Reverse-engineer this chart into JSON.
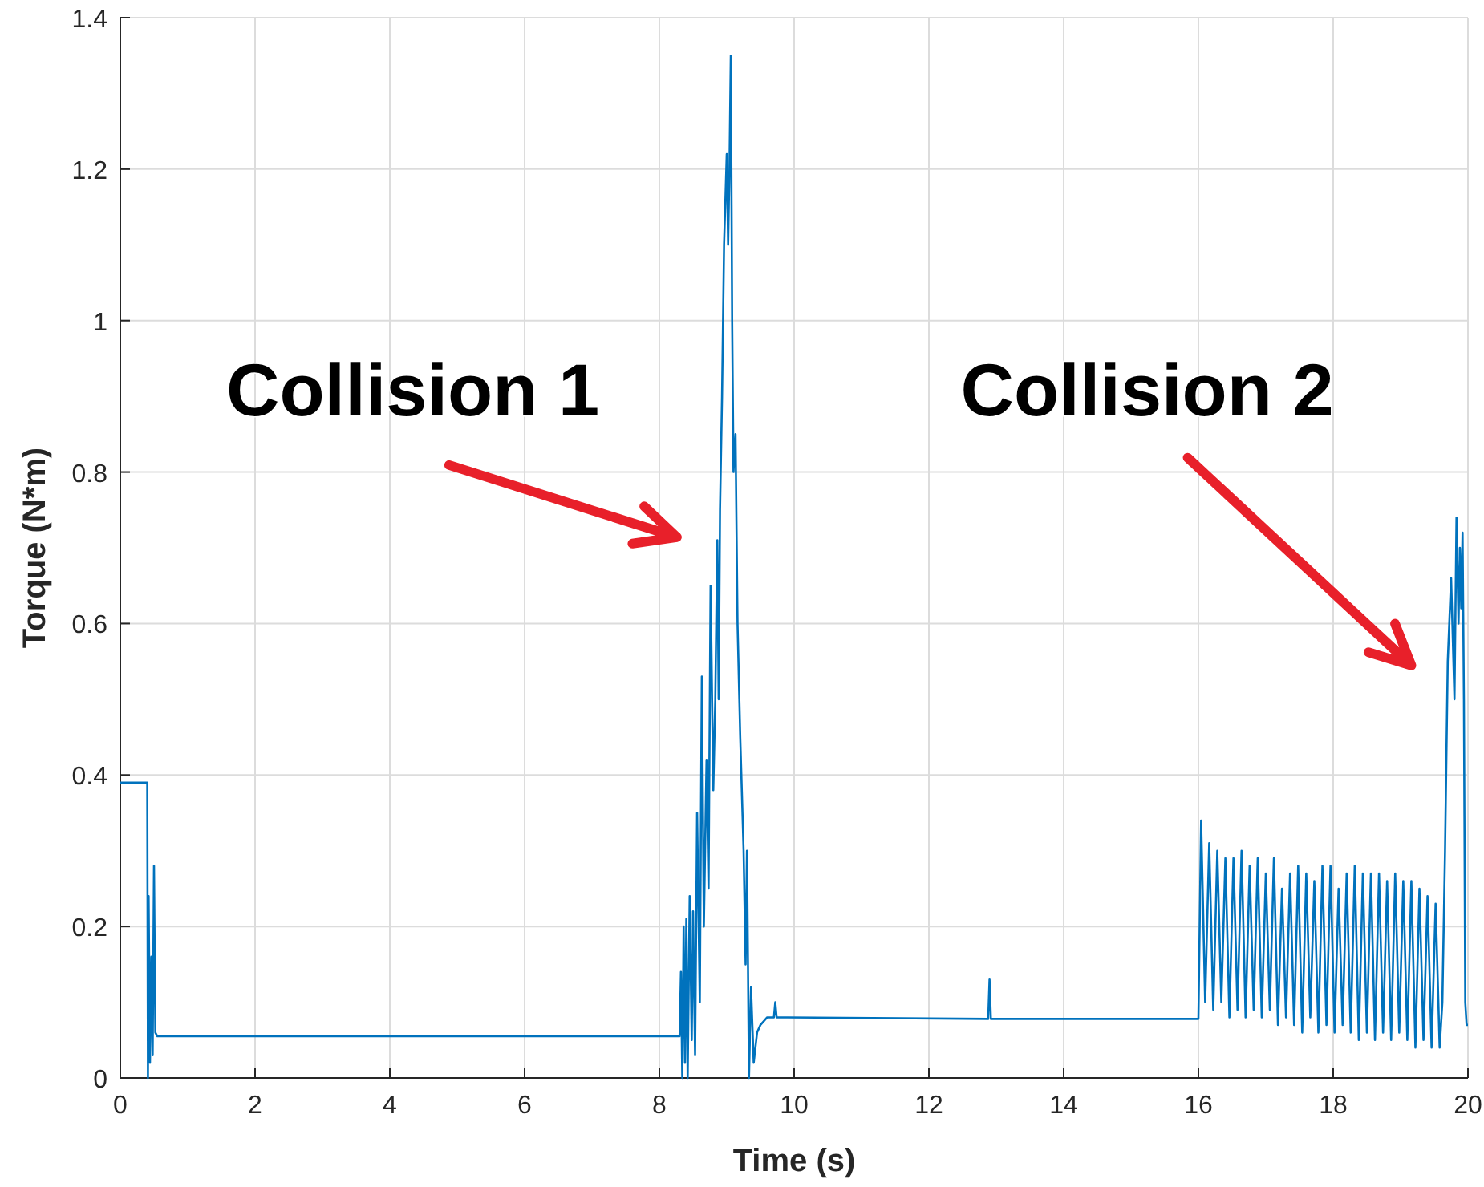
{
  "chart_data": {
    "type": "line",
    "xlabel": "Time (s)",
    "ylabel": "Torque (N*m)",
    "xlim": [
      0,
      20
    ],
    "ylim": [
      0,
      1.4
    ],
    "xticks": [
      0,
      2,
      4,
      6,
      8,
      10,
      12,
      14,
      16,
      18,
      20
    ],
    "yticks": [
      0,
      0.2,
      0.4,
      0.6,
      0.8,
      1,
      1.2,
      1.4
    ],
    "grid": true,
    "annotations": [
      "Collision 1",
      "Collision 2"
    ],
    "series": [
      {
        "color": "#0072bd",
        "x": [
          0,
          0.4,
          0.41,
          0.42,
          0.44,
          0.46,
          0.48,
          0.5,
          0.52,
          0.55,
          0.6,
          8.3,
          8.32,
          8.34,
          8.36,
          8.38,
          8.4,
          8.42,
          8.45,
          8.48,
          8.5,
          8.53,
          8.56,
          8.6,
          8.63,
          8.66,
          8.7,
          8.73,
          8.76,
          8.8,
          8.83,
          8.86,
          8.88,
          8.9,
          8.93,
          8.96,
          9.0,
          9.02,
          9.04,
          9.06,
          9.08,
          9.1,
          9.13,
          9.16,
          9.2,
          9.25,
          9.28,
          9.3,
          9.33,
          9.36,
          9.4,
          9.45,
          9.5,
          9.6,
          9.7,
          9.72,
          9.74,
          9.8,
          9.9,
          12.88,
          12.9,
          12.92,
          16.0,
          16.04,
          16.1,
          16.16,
          16.22,
          16.28,
          16.34,
          16.4,
          16.46,
          16.52,
          16.58,
          16.64,
          16.7,
          16.76,
          16.82,
          16.88,
          16.94,
          17.0,
          17.06,
          17.12,
          17.18,
          17.24,
          17.3,
          17.36,
          17.42,
          17.48,
          17.54,
          17.6,
          17.66,
          17.72,
          17.78,
          17.84,
          17.9,
          17.96,
          18.02,
          18.08,
          18.14,
          18.2,
          18.26,
          18.32,
          18.38,
          18.44,
          18.5,
          18.56,
          18.62,
          18.68,
          18.74,
          18.8,
          18.86,
          18.92,
          18.98,
          19.04,
          19.1,
          19.16,
          19.22,
          19.28,
          19.34,
          19.4,
          19.46,
          19.52,
          19.58,
          19.62,
          19.66,
          19.7,
          19.75,
          19.8,
          19.83,
          19.86,
          19.88,
          19.9,
          19.92,
          19.94,
          19.96,
          19.98,
          20.0
        ],
        "values": [
          0.39,
          0.39,
          0.0,
          0.24,
          0.02,
          0.16,
          0.03,
          0.28,
          0.06,
          0.055,
          0.055,
          0.055,
          0.14,
          0.0,
          0.2,
          0.02,
          0.21,
          0.0,
          0.24,
          0.05,
          0.22,
          0.03,
          0.35,
          0.1,
          0.53,
          0.2,
          0.42,
          0.25,
          0.65,
          0.38,
          0.5,
          0.71,
          0.5,
          0.75,
          0.9,
          1.1,
          1.22,
          1.1,
          1.2,
          1.35,
          1.0,
          0.8,
          0.85,
          0.6,
          0.45,
          0.3,
          0.15,
          0.3,
          0.0,
          0.12,
          0.02,
          0.06,
          0.07,
          0.08,
          0.08,
          0.1,
          0.08,
          0.08,
          0.08,
          0.078,
          0.13,
          0.078,
          0.078,
          0.34,
          0.1,
          0.31,
          0.09,
          0.3,
          0.1,
          0.29,
          0.08,
          0.29,
          0.09,
          0.3,
          0.08,
          0.28,
          0.09,
          0.29,
          0.08,
          0.27,
          0.09,
          0.29,
          0.07,
          0.25,
          0.08,
          0.27,
          0.07,
          0.28,
          0.06,
          0.27,
          0.08,
          0.26,
          0.06,
          0.28,
          0.07,
          0.28,
          0.06,
          0.25,
          0.07,
          0.27,
          0.06,
          0.28,
          0.05,
          0.27,
          0.06,
          0.27,
          0.05,
          0.27,
          0.06,
          0.26,
          0.05,
          0.27,
          0.06,
          0.26,
          0.05,
          0.26,
          0.04,
          0.25,
          0.05,
          0.24,
          0.04,
          0.23,
          0.04,
          0.1,
          0.3,
          0.55,
          0.66,
          0.5,
          0.74,
          0.6,
          0.7,
          0.62,
          0.72,
          0.5,
          0.1,
          0.07,
          0.07
        ]
      }
    ]
  }
}
